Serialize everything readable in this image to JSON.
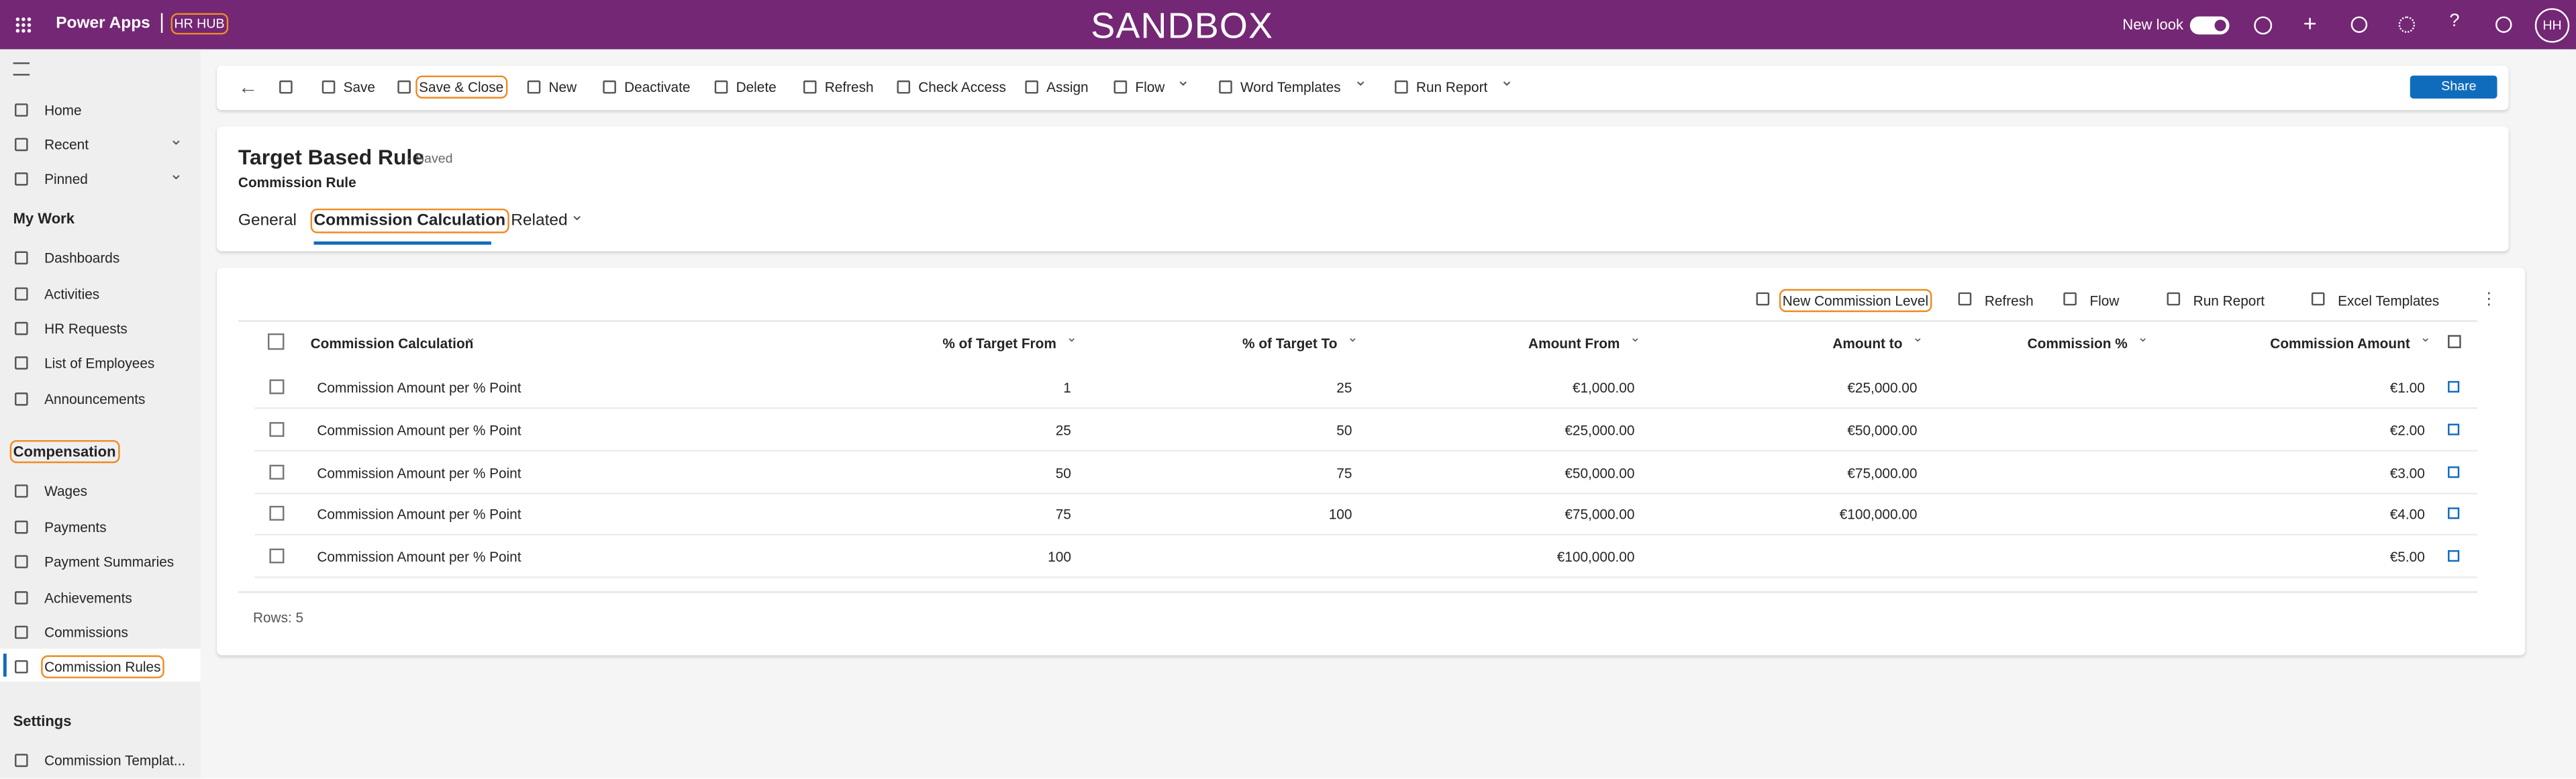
{
  "header": {
    "app": "Power Apps",
    "hub": "HR HUB",
    "environment": "SANDBOX",
    "new_look": "New look",
    "avatar": "HH"
  },
  "nav": {
    "items": [
      "Home",
      "Recent",
      "Pinned"
    ],
    "my_work": "My Work",
    "my_work_items": [
      "Dashboards",
      "Activities",
      "HR Requests",
      "List of Employees",
      "Announcements"
    ],
    "compensation": "Compensation",
    "compensation_items": [
      "Wages",
      "Payments",
      "Payment Summaries",
      "Achievements",
      "Commissions",
      "Commission Rules"
    ],
    "settings": "Settings",
    "settings_items": [
      "Commission Templat..."
    ]
  },
  "commands": [
    "Save",
    "Save & Close",
    "New",
    "Deactivate",
    "Delete",
    "Refresh",
    "Check Access",
    "Assign",
    "Flow",
    "Word Templates",
    "Run Report"
  ],
  "share": "Share",
  "form": {
    "title": "Target Based Rule",
    "status": "- Saved",
    "entity": "Commission Rule",
    "tabs": [
      "General",
      "Commission Calculation",
      "Related"
    ]
  },
  "grid": {
    "commands": [
      "New Commission Level",
      "Refresh",
      "Flow",
      "Run Report",
      "Excel Templates"
    ],
    "columns": [
      "Commission Calculation",
      "% of Target From",
      "% of Target To",
      "Amount From",
      "Amount to",
      "Commission %",
      "Commission Amount"
    ],
    "rows": [
      [
        "Commission Amount per % Point",
        "1",
        "25",
        "€1,000.00",
        "€25,000.00",
        null,
        "€1.00"
      ],
      [
        "Commission Amount per % Point",
        "25",
        "50",
        "€25,000.00",
        "€50,000.00",
        null,
        "€2.00"
      ],
      [
        "Commission Amount per % Point",
        "50",
        "75",
        "€50,000.00",
        "€75,000.00",
        null,
        "€3.00"
      ],
      [
        "Commission Amount per % Point",
        "75",
        "100",
        "€75,000.00",
        "€100,000.00",
        null,
        "€4.00"
      ],
      [
        "Commission Amount per % Point",
        "100",
        null,
        "€100,000.00",
        null,
        null,
        "€5.00"
      ]
    ],
    "footer": "Rows: 5"
  }
}
